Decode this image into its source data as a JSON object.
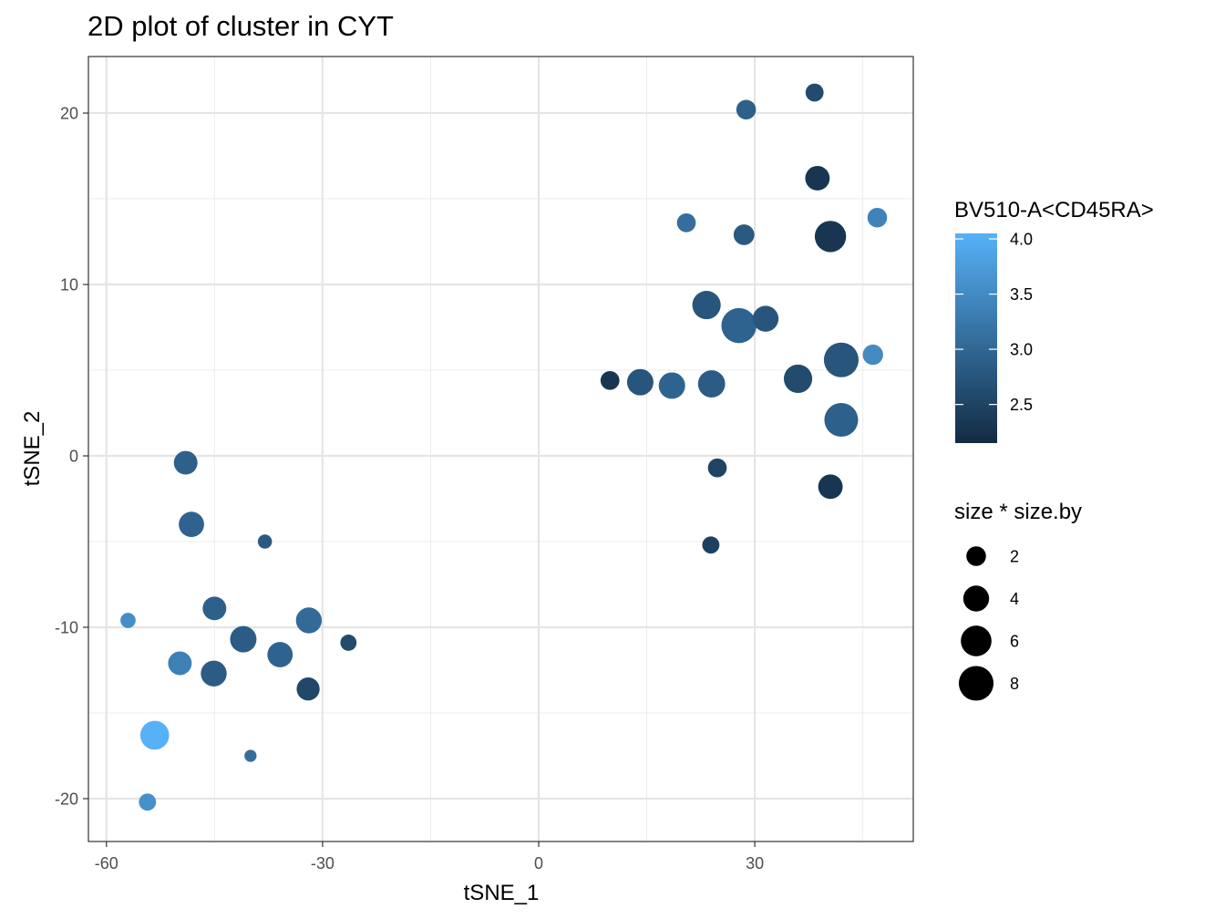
{
  "chart_data": {
    "type": "scatter",
    "title": "2D plot of cluster in CYT",
    "xlabel": "tSNE_1",
    "ylabel": "tSNE_2",
    "xlim": [
      -62.5,
      52
    ],
    "ylim": [
      -22.5,
      23.3
    ],
    "x_ticks": [
      -60,
      -30,
      0,
      30
    ],
    "y_ticks": [
      -20,
      -10,
      0,
      10,
      20
    ],
    "grid": true,
    "color_legend": {
      "title": "BV510-A<CD45RA>",
      "min": 2.15,
      "max": 4.05,
      "ticks": [
        2.5,
        3.0,
        3.5,
        4.0
      ],
      "tick_labels": [
        "2.5",
        "3.0",
        "3.5",
        "4.0"
      ],
      "low_color": "#132b43",
      "high_color": "#56b1f7"
    },
    "size_legend": {
      "title": "size * size.by",
      "values": [
        2,
        4,
        6,
        8
      ],
      "labels": [
        "2",
        "4",
        "6",
        "8"
      ]
    },
    "points": [
      {
        "x": 38.3,
        "y": 21.2,
        "size": 1.6,
        "color": 2.6
      },
      {
        "x": 28.8,
        "y": 20.2,
        "size": 2.0,
        "color": 2.9
      },
      {
        "x": 38.7,
        "y": 16.2,
        "size": 3.5,
        "color": 2.3
      },
      {
        "x": 47.0,
        "y": 13.9,
        "size": 2.0,
        "color": 3.4
      },
      {
        "x": 20.5,
        "y": 13.6,
        "size": 1.8,
        "color": 3.1
      },
      {
        "x": 28.5,
        "y": 12.9,
        "size": 2.3,
        "color": 2.8
      },
      {
        "x": 40.5,
        "y": 12.8,
        "size": 6.3,
        "color": 2.3
      },
      {
        "x": 23.3,
        "y": 8.8,
        "size": 5.0,
        "color": 2.75
      },
      {
        "x": 27.8,
        "y": 7.6,
        "size": 8.2,
        "color": 2.95
      },
      {
        "x": 31.5,
        "y": 8.0,
        "size": 4.0,
        "color": 2.75
      },
      {
        "x": 42.0,
        "y": 5.6,
        "size": 8.0,
        "color": 2.75
      },
      {
        "x": 46.4,
        "y": 5.9,
        "size": 2.2,
        "color": 3.5
      },
      {
        "x": 9.9,
        "y": 4.4,
        "size": 1.8,
        "color": 2.3
      },
      {
        "x": 14.1,
        "y": 4.3,
        "size": 4.2,
        "color": 2.75
      },
      {
        "x": 18.5,
        "y": 4.1,
        "size": 4.2,
        "color": 2.95
      },
      {
        "x": 24.0,
        "y": 4.2,
        "size": 4.5,
        "color": 2.85
      },
      {
        "x": 36.0,
        "y": 4.5,
        "size": 5.0,
        "color": 2.6
      },
      {
        "x": 42.0,
        "y": 2.1,
        "size": 7.5,
        "color": 2.9
      },
      {
        "x": 24.8,
        "y": -0.7,
        "size": 1.8,
        "color": 2.5
      },
      {
        "x": 40.5,
        "y": -1.8,
        "size": 3.5,
        "color": 2.3
      },
      {
        "x": 23.9,
        "y": -5.2,
        "size": 1.4,
        "color": 2.45
      },
      {
        "x": -49.0,
        "y": -0.4,
        "size": 3.2,
        "color": 2.9
      },
      {
        "x": -48.2,
        "y": -4.0,
        "size": 3.8,
        "color": 2.95
      },
      {
        "x": -38.0,
        "y": -5.0,
        "size": 0.8,
        "color": 2.8
      },
      {
        "x": -57.0,
        "y": -9.6,
        "size": 1.0,
        "color": 3.55
      },
      {
        "x": -45.0,
        "y": -8.9,
        "size": 3.2,
        "color": 2.9
      },
      {
        "x": -31.9,
        "y": -9.6,
        "size": 4.0,
        "color": 3.05
      },
      {
        "x": -26.4,
        "y": -10.9,
        "size": 1.2,
        "color": 2.6
      },
      {
        "x": -41.0,
        "y": -10.7,
        "size": 4.2,
        "color": 2.85
      },
      {
        "x": -35.9,
        "y": -11.6,
        "size": 3.8,
        "color": 2.95
      },
      {
        "x": -49.8,
        "y": -12.1,
        "size": 3.2,
        "color": 3.35
      },
      {
        "x": -45.1,
        "y": -12.7,
        "size": 4.0,
        "color": 2.85
      },
      {
        "x": -32.0,
        "y": -13.6,
        "size": 3.0,
        "color": 2.55
      },
      {
        "x": -53.3,
        "y": -16.3,
        "size": 5.2,
        "color": 4.05
      },
      {
        "x": -40.0,
        "y": -17.5,
        "size": 0.5,
        "color": 3.1
      },
      {
        "x": -54.3,
        "y": -20.2,
        "size": 1.4,
        "color": 3.6
      }
    ]
  }
}
